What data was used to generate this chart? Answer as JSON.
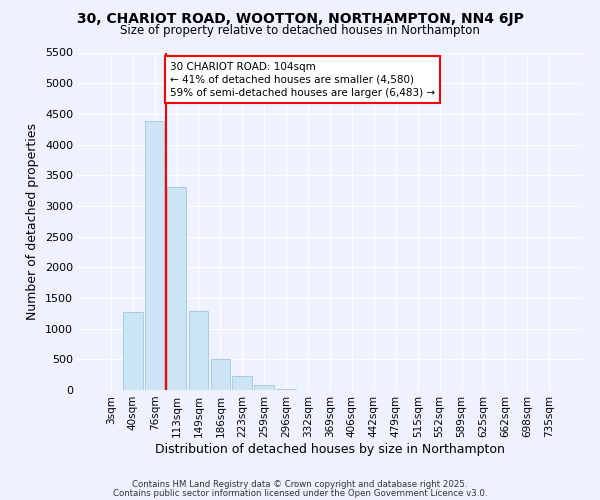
{
  "title": "30, CHARIOT ROAD, WOOTTON, NORTHAMPTON, NN4 6JP",
  "subtitle": "Size of property relative to detached houses in Northampton",
  "xlabel": "Distribution of detached houses by size in Northampton",
  "ylabel": "Number of detached properties",
  "bar_labels": [
    "3sqm",
    "40sqm",
    "76sqm",
    "113sqm",
    "149sqm",
    "186sqm",
    "223sqm",
    "259sqm",
    "296sqm",
    "332sqm",
    "369sqm",
    "406sqm",
    "442sqm",
    "479sqm",
    "515sqm",
    "552sqm",
    "589sqm",
    "625sqm",
    "662sqm",
    "698sqm",
    "735sqm"
  ],
  "bar_values": [
    0,
    1270,
    4380,
    3310,
    1280,
    500,
    230,
    75,
    20,
    5,
    2,
    0,
    0,
    0,
    0,
    0,
    0,
    0,
    0,
    0,
    0
  ],
  "bar_color": "#cce5f5",
  "bar_edgecolor": "#a8cce0",
  "vline_x_index": 2.5,
  "vline_color": "red",
  "ylim": [
    0,
    5500
  ],
  "yticks": [
    0,
    500,
    1000,
    1500,
    2000,
    2500,
    3000,
    3500,
    4000,
    4500,
    5000,
    5500
  ],
  "annotation_title": "30 CHARIOT ROAD: 104sqm",
  "annotation_line1": "← 41% of detached houses are smaller (4,580)",
  "annotation_line2": "59% of semi-detached houses are larger (6,483) →",
  "annotation_box_color": "red",
  "bg_color": "#eef2ff",
  "footer1": "Contains HM Land Registry data © Crown copyright and database right 2025.",
  "footer2": "Contains public sector information licensed under the Open Government Licence v3.0."
}
